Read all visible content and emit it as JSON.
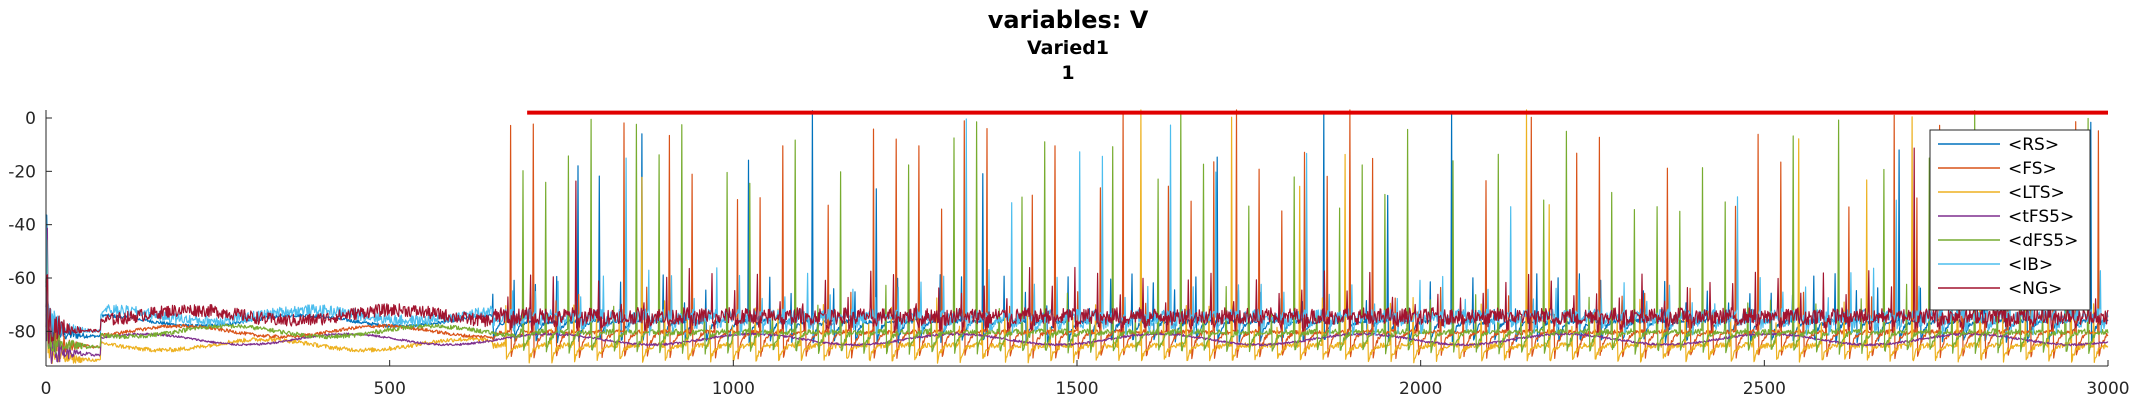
{
  "chart_data": {
    "type": "line",
    "title": "variables: V",
    "subtitle1": "Varied1",
    "subtitle2": "1",
    "xlabel": "",
    "ylabel": "",
    "xlim": [
      0,
      3000
    ],
    "ylim": [
      -93,
      3
    ],
    "xticks": [
      0,
      500,
      1000,
      1500,
      2000,
      2500,
      3000
    ],
    "yticks": [
      0,
      -20,
      -40,
      -60,
      -80
    ],
    "grid": false,
    "legend_position": "right, inside top",
    "stim_bar": {
      "x_start": 700,
      "x_end": 3000,
      "y": 2,
      "color": "#e00000"
    },
    "series": [
      {
        "name": "<RS>",
        "color": "#0072bd",
        "baseline": -76,
        "spike_start": 650,
        "period": 31,
        "amp": 0.1,
        "noise": 0.8,
        "sag": 9
      },
      {
        "name": "<FS>",
        "color": "#d95319",
        "baseline": -80,
        "spike_start": 650,
        "period": 33,
        "amp": 0.55,
        "noise": 0.8,
        "sag": 12
      },
      {
        "name": "<LTS>",
        "color": "#edb120",
        "baseline": -85,
        "spike_start": 650,
        "period": 33,
        "amp": 0.2,
        "noise": 1.0,
        "sag": 8
      },
      {
        "name": "<tFS5>",
        "color": "#7e2f8e",
        "baseline": -83,
        "spike_start": 9999,
        "period": 40,
        "amp": 0,
        "noise": 0.5,
        "sag": 2
      },
      {
        "name": "<dFS5>",
        "color": "#77ac30",
        "baseline": -80,
        "spike_start": 690,
        "period": 33,
        "amp": 0.6,
        "noise": 1.0,
        "sag": 10
      },
      {
        "name": "<IB>",
        "color": "#4dbeee",
        "baseline": -74,
        "spike_start": 650,
        "period": 33,
        "amp": 0.15,
        "noise": 2.5,
        "sag": 6
      },
      {
        "name": "<NG>",
        "color": "#a2142f",
        "baseline": -74,
        "spike_start": 650,
        "period": 33,
        "amp": 0.08,
        "noise": 3.0,
        "sag": 5
      }
    ]
  }
}
